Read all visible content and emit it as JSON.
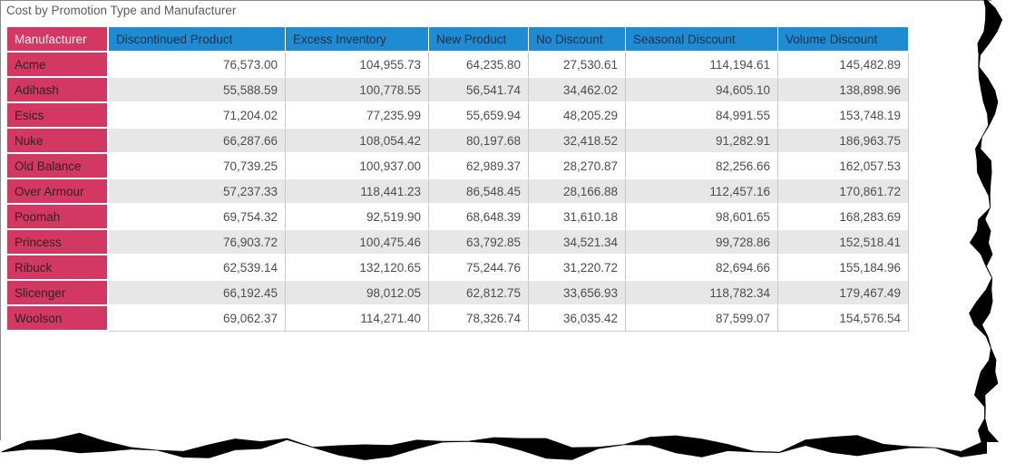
{
  "title": "Cost by Promotion Type and Manufacturer",
  "table": {
    "columns": [
      "Manufacturer",
      "Discontinued Product",
      "Excess Inventory",
      "New Product",
      "No Discount",
      "Seasonal Discount",
      "Volume Discount"
    ],
    "rows": [
      {
        "label": "Acme",
        "cells": [
          "76,573.00",
          "104,955.73",
          "64,235.80",
          "27,530.61",
          "114,194.61",
          "145,482.89"
        ]
      },
      {
        "label": "Adihash",
        "cells": [
          "55,588.59",
          "100,778.55",
          "56,541.74",
          "34,462.02",
          "94,605.10",
          "138,898.96"
        ]
      },
      {
        "label": "Esics",
        "cells": [
          "71,204.02",
          "77,235.99",
          "55,659.94",
          "48,205.29",
          "84,991.55",
          "153,748.19"
        ]
      },
      {
        "label": "Nuke",
        "cells": [
          "66,287.66",
          "108,054.42",
          "80,197.68",
          "32,418.52",
          "91,282.91",
          "186,963.75"
        ]
      },
      {
        "label": "Old Balance",
        "cells": [
          "70,739.25",
          "100,937.00",
          "62,989.37",
          "28,270.87",
          "82,256.66",
          "162,057.53"
        ]
      },
      {
        "label": "Over Armour",
        "cells": [
          "57,237.33",
          "118,441.23",
          "86,548.45",
          "28,166.88",
          "112,457.16",
          "170,861.72"
        ]
      },
      {
        "label": "Poomah",
        "cells": [
          "69,754.32",
          "92,519.90",
          "68,648.39",
          "31,610.18",
          "98,601.65",
          "168,283.69"
        ]
      },
      {
        "label": "Princess",
        "cells": [
          "76,903.72",
          "100,475.46",
          "63,792.85",
          "34,521.34",
          "99,728.86",
          "152,518.41"
        ]
      },
      {
        "label": "Ribuck",
        "cells": [
          "62,539.14",
          "132,120.65",
          "75,244.76",
          "31,220.72",
          "82,694.66",
          "155,184.96"
        ]
      },
      {
        "label": "Slicenger",
        "cells": [
          "66,192.45",
          "98,012.05",
          "62,812.75",
          "33,656.93",
          "118,782.34",
          "179,467.49"
        ]
      },
      {
        "label": "Woolson",
        "cells": [
          "69,062.37",
          "114,271.40",
          "78,326.74",
          "36,035.42",
          "87,599.07",
          "154,576.54"
        ]
      }
    ]
  },
  "colors": {
    "header_blue": "#1E8BD3",
    "manufacturer_red": "#D23862",
    "alt_row_gray": "#E7E7E7",
    "grid_line": "#C9C9C9",
    "title_gray": "#5c5c5c",
    "tear_black": "#000000"
  },
  "chart_data": {
    "type": "table",
    "title": "Cost by Promotion Type and Manufacturer",
    "categories": [
      "Acme",
      "Adihash",
      "Esics",
      "Nuke",
      "Old Balance",
      "Over Armour",
      "Poomah",
      "Princess",
      "Ribuck",
      "Slicenger",
      "Woolson"
    ],
    "series": [
      {
        "name": "Discontinued Product",
        "values": [
          76573.0,
          55588.59,
          71204.02,
          66287.66,
          70739.25,
          57237.33,
          69754.32,
          76903.72,
          62539.14,
          66192.45,
          69062.37
        ]
      },
      {
        "name": "Excess Inventory",
        "values": [
          104955.73,
          100778.55,
          77235.99,
          108054.42,
          100937.0,
          118441.23,
          92519.9,
          100475.46,
          132120.65,
          98012.05,
          114271.4
        ]
      },
      {
        "name": "New Product",
        "values": [
          64235.8,
          56541.74,
          55659.94,
          80197.68,
          62989.37,
          86548.45,
          68648.39,
          63792.85,
          75244.76,
          62812.75,
          78326.74
        ]
      },
      {
        "name": "No Discount",
        "values": [
          27530.61,
          34462.02,
          48205.29,
          32418.52,
          28270.87,
          28166.88,
          31610.18,
          34521.34,
          31220.72,
          33656.93,
          36035.42
        ]
      },
      {
        "name": "Seasonal Discount",
        "values": [
          114194.61,
          94605.1,
          84991.55,
          91282.91,
          82256.66,
          112457.16,
          98601.65,
          99728.86,
          82694.66,
          118782.34,
          87599.07
        ]
      },
      {
        "name": "Volume Discount",
        "values": [
          145482.89,
          138898.96,
          153748.19,
          186963.75,
          162057.53,
          170861.72,
          168283.69,
          152518.41,
          155184.96,
          179467.49,
          154576.54
        ]
      }
    ],
    "legend_position": "none",
    "grid": true
  }
}
